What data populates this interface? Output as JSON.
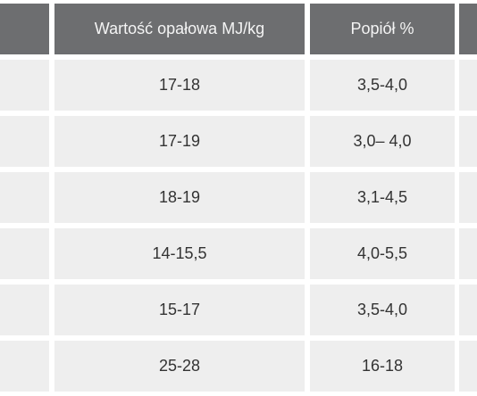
{
  "table": {
    "headers": [
      "",
      "Wartość opałowa MJ/kg",
      "Popiół %",
      ""
    ],
    "rows": [
      [
        "",
        "17-18",
        "3,5-4,0",
        ""
      ],
      [
        "",
        "17-19",
        "3,0– 4,0",
        ""
      ],
      [
        "",
        "18-19",
        "3,1-4,5",
        ""
      ],
      [
        "",
        "14-15,5",
        "4,0-5,5",
        ""
      ],
      [
        "",
        "15-17",
        "3,5-4,0",
        ""
      ],
      [
        "",
        "25-28",
        "16-18",
        ""
      ]
    ]
  },
  "colors": {
    "header_bg": "#6d6e70",
    "header_text": "#f4f4f4",
    "cell_bg": "#eeeeee",
    "cell_text": "#333333"
  }
}
